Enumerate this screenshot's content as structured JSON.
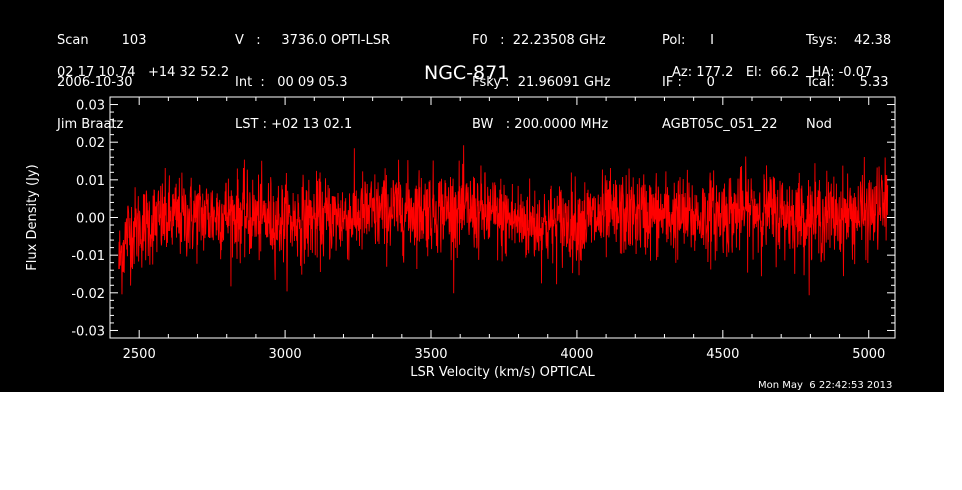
{
  "header": {
    "col1": [
      "Scan        103",
      "2006-10-30",
      "Jim Braatz"
    ],
    "col2": [
      "V   :     3736.0 OPTI-LSR",
      "Int  :   00 09 05.3",
      "LST : +02 13 02.1"
    ],
    "col3": [
      "F0   :  22.23508 GHz",
      "Fsky :  21.96091 GHz",
      "BW   : 200.0000 MHz"
    ],
    "col4": [
      "Pol:      I",
      "IF :      0",
      "AGBT05C_051_22"
    ],
    "col5": [
      "Tsys:    42.38",
      "Tcal:      5.33",
      "Nod"
    ],
    "coords": "02 17 10.74   +14 32 52.2",
    "source": "NGC-871",
    "pointing": "Az: 177.2   El:  66.2   HA: -0.07",
    "timestamp": "Mon May  6 22:42:53 2013"
  },
  "colors": {
    "background": "#000000",
    "axes": "#ffffff",
    "trace": "#ff0000"
  },
  "chart_data": {
    "type": "line",
    "title": "NGC-871",
    "xlabel": "LSR Velocity (km/s) OPTICAL",
    "ylabel": "Flux Density (Jy)",
    "xlim": [
      2400,
      5090
    ],
    "ylim": [
      -0.032,
      0.032
    ],
    "xticks": [
      2500,
      3000,
      3500,
      4000,
      4500,
      5000
    ],
    "xtick_labels": [
      "2500",
      "3000",
      "3500",
      "4000",
      "4500",
      "5000"
    ],
    "yticks": [
      -0.03,
      -0.02,
      -0.01,
      0.0,
      0.01,
      0.02,
      0.03
    ],
    "ytick_labels": [
      "-0.03",
      "-0.02",
      "-0.01",
      "0.00",
      "0.01",
      "0.02",
      "0.03"
    ],
    "series": [
      {
        "color": "#ff0000",
        "x_start": 2430,
        "x_end": 5065,
        "baseline_x": [
          2430,
          2460,
          2550,
          2650,
          2800,
          3000,
          3200,
          3400,
          3600,
          3800,
          3900,
          4000,
          4200,
          4400,
          4600,
          4800,
          5000,
          5065
        ],
        "baseline_y": [
          -0.012,
          -0.004,
          -0.001,
          0.0,
          0.001,
          -0.001,
          0.0,
          0.002,
          0.002,
          -0.001,
          -0.002,
          -0.001,
          0.001,
          0.0,
          0.002,
          0.0,
          0.001,
          0.004
        ],
        "rms": 0.0055
      }
    ]
  }
}
